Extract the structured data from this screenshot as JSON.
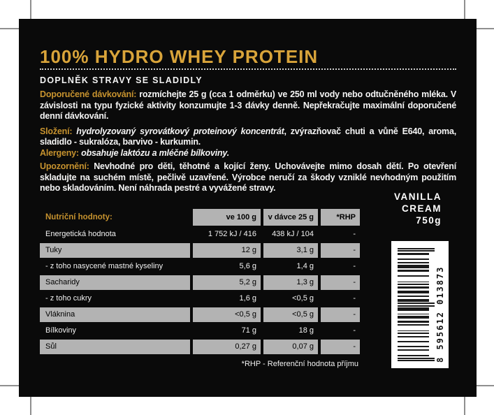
{
  "colors": {
    "label_bg": "#0a0a0a",
    "title_gold": "#d9a43a",
    "heading_gold": "#c6922e",
    "table_gray": "#b3b3b3",
    "text_white": "#f5f5f5"
  },
  "label": {
    "title": "100% HYDRO WHEY PROTEIN",
    "subtitle": "DOPLNĚK STRAVY SE SLADIDLY",
    "paragraphs": [
      {
        "heading": "Doporučené dávkování:",
        "body": "rozmíchejte 25 g (cca 1 odměrku) ve 250 ml vody nebo odtučněného mléka. V závislosti na typu fyzické aktivity konzumujte 1-3 dávky denně. Nepřekračujte maximální doporučené denní dávkování."
      },
      {
        "heading": "Složení:",
        "body_em": "hydrolyzovaný syrovátkový proteinový koncentrát",
        "body": ", zvýrazňovač chuti a vůně E640, aroma, sladidlo - sukralóza, barvivo - kurkumin."
      },
      {
        "heading": "Alergeny:",
        "body_em": "obsahuje laktózu a mléčné bílkoviny."
      },
      {
        "heading": "Upozornění:",
        "body": "Nevhodné pro děti, těhotné a kojící ženy. Uchovávejte mimo dosah dětí. Po otevření skladujte na suchém místě, pečlivě uzavřené. Výrobce neručí za škody vzniklé nevhodným použitím nebo skladováním. Není náhrada pestré a vyvážené stravy."
      }
    ],
    "flavor": "VANILLA\nCREAM\n750g"
  },
  "table": {
    "title": "Nutriční hodnoty:",
    "columns": [
      "ve 100 g",
      "v dávce 25 g",
      "*RHP"
    ],
    "rows": [
      {
        "name": "Energetická hodnota",
        "per100": "1 752 kJ / 416 kcal",
        "per25": "438 kJ / 104 kcal",
        "rhp": "-",
        "shade": "dark"
      },
      {
        "name": "Tuky",
        "per100": "12 g",
        "per25": "3,1 g",
        "rhp": "-",
        "shade": "gray"
      },
      {
        "name": "- z toho nasycené mastné kyseliny",
        "per100": "5,6 g",
        "per25": "1,4 g",
        "rhp": "-",
        "shade": "dark"
      },
      {
        "name": "Sacharidy",
        "per100": "5,2 g",
        "per25": "1,3 g",
        "rhp": "-",
        "shade": "gray"
      },
      {
        "name": "- z toho cukry",
        "per100": "1,6 g",
        "per25": "<0,5 g",
        "rhp": "-",
        "shade": "dark"
      },
      {
        "name": "Vláknina",
        "per100": "<0,5 g",
        "per25": "<0,5 g",
        "rhp": "-",
        "shade": "gray"
      },
      {
        "name": "Bílkoviny",
        "per100": "71 g",
        "per25": "18 g",
        "rhp": "-",
        "shade": "dark"
      },
      {
        "name": "Sůl",
        "per100": "0,27 g",
        "per25": "0,07 g",
        "rhp": "-",
        "shade": "gray"
      }
    ],
    "footnote": "*RHP - Referenční hodnota příjmu"
  },
  "barcode": {
    "number": "8595612013873",
    "display": "8 595612 013873"
  }
}
